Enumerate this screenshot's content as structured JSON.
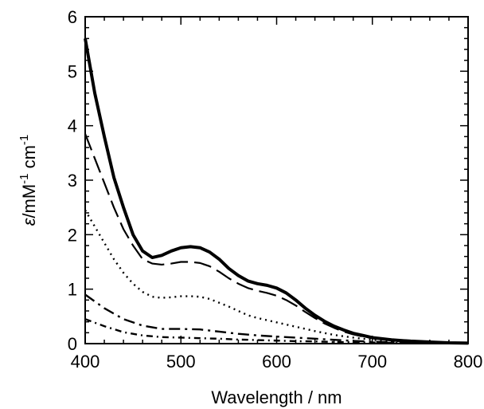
{
  "chart_data": {
    "type": "line",
    "xlabel": "Wavelength / nm",
    "ylabel": {
      "symbol": "ε",
      "text1": "/mM",
      "sup1": "-1",
      "text2": " cm",
      "sup2": "-1"
    },
    "xlim": [
      400,
      800
    ],
    "ylim": [
      0,
      6
    ],
    "xticks": [
      "400",
      "500",
      "600",
      "700",
      "800"
    ],
    "yticks": [
      "0",
      "1",
      "2",
      "3",
      "4",
      "5",
      "6"
    ],
    "grid": false,
    "series": [
      {
        "style": "solid-thick",
        "x": [
          400,
          410,
          420,
          430,
          440,
          450,
          460,
          470,
          480,
          490,
          500,
          510,
          520,
          530,
          540,
          550,
          560,
          570,
          580,
          590,
          600,
          610,
          620,
          630,
          640,
          650,
          660,
          670,
          680,
          690,
          700,
          720,
          740,
          760,
          780,
          800
        ],
        "y": [
          5.6,
          4.6,
          3.8,
          3.05,
          2.5,
          2.0,
          1.7,
          1.58,
          1.62,
          1.7,
          1.76,
          1.78,
          1.76,
          1.68,
          1.55,
          1.38,
          1.25,
          1.15,
          1.1,
          1.07,
          1.02,
          0.93,
          0.8,
          0.65,
          0.52,
          0.41,
          0.32,
          0.25,
          0.19,
          0.15,
          0.11,
          0.07,
          0.045,
          0.03,
          0.015,
          0.01
        ]
      },
      {
        "style": "long-dash",
        "x": [
          400,
          410,
          420,
          430,
          440,
          450,
          460,
          470,
          480,
          490,
          500,
          510,
          520,
          530,
          540,
          550,
          560,
          570,
          580,
          590,
          600,
          610,
          620,
          630,
          640,
          650,
          660,
          670,
          680,
          690,
          700,
          720,
          740,
          760,
          780,
          800
        ],
        "y": [
          3.85,
          3.4,
          2.95,
          2.5,
          2.1,
          1.8,
          1.55,
          1.47,
          1.45,
          1.47,
          1.5,
          1.5,
          1.48,
          1.42,
          1.32,
          1.2,
          1.1,
          1.02,
          0.97,
          0.93,
          0.88,
          0.8,
          0.7,
          0.58,
          0.47,
          0.37,
          0.29,
          0.22,
          0.17,
          0.13,
          0.1,
          0.065,
          0.04,
          0.025,
          0.015,
          0.01
        ]
      },
      {
        "style": "dotted",
        "x": [
          400,
          410,
          420,
          430,
          440,
          450,
          460,
          470,
          480,
          490,
          500,
          510,
          520,
          530,
          540,
          550,
          560,
          570,
          580,
          590,
          600,
          620,
          640,
          660,
          680,
          700,
          720,
          740,
          760,
          780,
          800
        ],
        "y": [
          2.45,
          2.15,
          1.85,
          1.55,
          1.3,
          1.1,
          0.95,
          0.86,
          0.84,
          0.85,
          0.87,
          0.87,
          0.86,
          0.82,
          0.75,
          0.68,
          0.6,
          0.52,
          0.47,
          0.43,
          0.39,
          0.31,
          0.23,
          0.16,
          0.11,
          0.07,
          0.045,
          0.03,
          0.02,
          0.01,
          0.005
        ]
      },
      {
        "style": "dash-dot",
        "x": [
          400,
          420,
          440,
          460,
          480,
          500,
          520,
          540,
          560,
          580,
          600,
          620,
          640,
          660,
          680,
          700,
          720,
          740,
          760,
          780,
          800
        ],
        "y": [
          0.9,
          0.65,
          0.45,
          0.33,
          0.27,
          0.27,
          0.26,
          0.22,
          0.18,
          0.15,
          0.13,
          0.11,
          0.09,
          0.07,
          0.05,
          0.035,
          0.025,
          0.02,
          0.015,
          0.01,
          0.005
        ]
      },
      {
        "style": "short-dash-dot",
        "x": [
          400,
          420,
          440,
          460,
          480,
          500,
          520,
          540,
          560,
          580,
          600,
          620,
          640,
          660,
          680,
          700,
          720,
          740,
          760,
          780,
          800
        ],
        "y": [
          0.45,
          0.32,
          0.21,
          0.15,
          0.12,
          0.11,
          0.1,
          0.09,
          0.075,
          0.065,
          0.055,
          0.045,
          0.04,
          0.03,
          0.025,
          0.02,
          0.015,
          0.01,
          0.008,
          0.005,
          0.003
        ]
      }
    ]
  }
}
